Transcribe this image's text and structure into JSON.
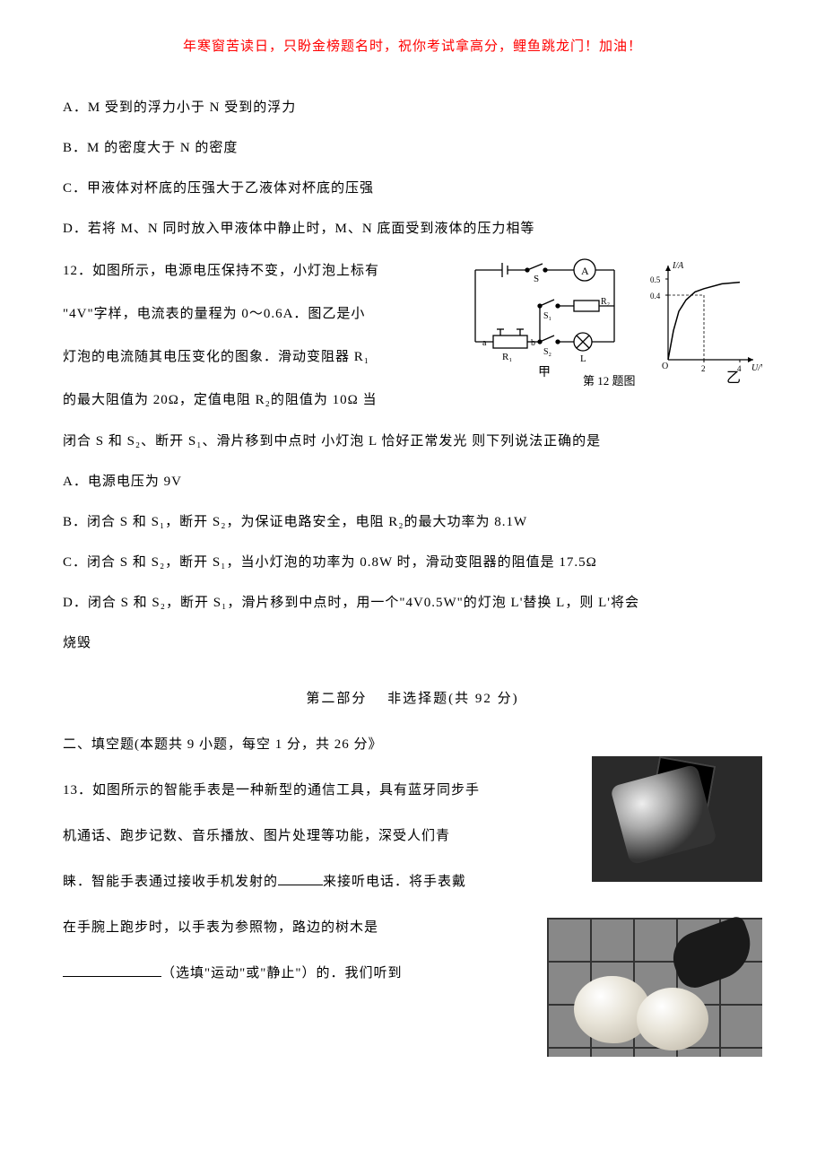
{
  "header": "年寒窗苦读日，只盼金榜题名时，祝你考试拿高分，鲤鱼跳龙门！加油！",
  "q11": {
    "optA": "A．M 受到的浮力小于 N 受到的浮力",
    "optB": "B．M 的密度大于 N 的密度",
    "optC": "C．甲液体对杯底的压强大于乙液体对杯底的压强",
    "optD": "D．若将 M、N 同时放入甲液体中静止时，M、N 底面受到液体的压力相等"
  },
  "q12": {
    "stem1": "12．如图所示，电源电压保持不变，小灯泡上标有",
    "stem2": "\"4V\"字样，电流表的量程为 0～0.6A．图乙是小",
    "stem3": "灯泡的电流随其电压变化的图象．滑动变阻器 R₁",
    "stem4": "的最大阻值为 20Ω，定值电阻 R₂的阻值为 10Ω 当",
    "stem5": "闭合 S 和 S₂、断开 S₁、滑片移到中点时 小灯泡 L 恰好正常发光 则下列说法正确的是",
    "optA": "A．电源电压为 9V",
    "optB": "B．闭合 S 和 S₁，断开 S₂，为保证电路安全，电阻 R₂的最大功率为 8.1W",
    "optC": "C．闭合 S 和 S₂，断开 S₁，当小灯泡的功率为 0.8W 时，滑动变阻器的阻值是 17.5Ω",
    "optD_a": "D．闭合 S 和 S₂，断开 S₁，滑片移到中点时，用一个\"4V0.5W\"的灯泡 L'替换 L，则 L'将会",
    "optD_b": "烧毁",
    "figure": {
      "caption_left": "甲",
      "caption_mid": "第 12 题图",
      "caption_right": "乙",
      "circuit_labels": {
        "S": "S",
        "A": "A",
        "S1": "S₁",
        "S2": "S₂",
        "R1": "R₁",
        "R2": "R₂",
        "L": "L",
        "a": "a",
        "b": "b"
      },
      "graph": {
        "ylabel": "I/A",
        "xlabel": "U/V",
        "yticks": [
          "0.4",
          "0.5"
        ],
        "xticks": [
          "2",
          "4"
        ],
        "origin": "O",
        "curve": [
          [
            0,
            0
          ],
          [
            0.3,
            0.18
          ],
          [
            0.6,
            0.3
          ],
          [
            1.0,
            0.37
          ],
          [
            1.5,
            0.42
          ],
          [
            2.0,
            0.44
          ],
          [
            3.0,
            0.47
          ],
          [
            4.0,
            0.48
          ]
        ]
      }
    }
  },
  "part2": {
    "title": "第二部分　 非选择题(共 92 分)",
    "sec2": "二、填空题(本题共 9 小题，每空 1 分，共 26 分》",
    "q13_a": "13．如图所示的智能手表是一种新型的通信工具，具有蓝牙同步手",
    "q13_b": "机通话、跑步记数、音乐播放、图片处理等功能，深受人们青",
    "q13_c_pre": "睐．智能手表通过接收手机发射的",
    "q13_c_post": "来接听电话．将手表戴",
    "q13_d": "在手腕上跑步时，以手表为参照物，路边的树木是",
    "q13_e_post": "（选填\"运动\"或\"静止\"）的．我们听到"
  }
}
